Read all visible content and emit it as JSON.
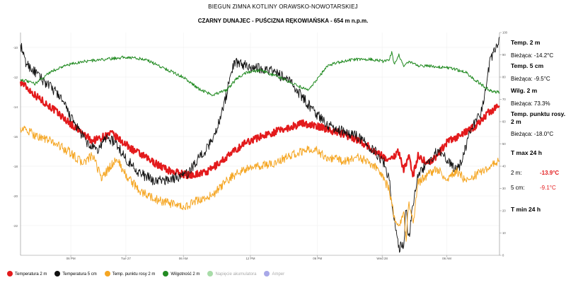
{
  "header": {
    "title": "BIEGUN ZIMNA KOTLINY ORAWSKO-NOWOTARSKIEJ",
    "subtitle": "CZARNY DUNAJEC - PUŚCIZNA RĘKOWIAŃSKA - 654 m n.p.m."
  },
  "side": {
    "t2_title": "Temp. 2 m",
    "t2_value": "Bieżąca: -14.2°C",
    "t5_title": "Temp. 5 cm",
    "t5_value": "Bieżąca: -9.5°C",
    "wilg_title": "Wilg. 2 m",
    "wilg_value": "Bieżąca: 73.3%",
    "dew_title": "Temp. punktu rosy. 2 m",
    "dew_value": "Bieżąca: -18.0°C",
    "tmax_title": "T max 24 h",
    "tmax_2m_label": "2 m:",
    "tmax_2m_value": "-13.9°C",
    "tmax_5cm_label": "5 cm:",
    "tmax_5cm_value": "-9.1°C",
    "tmin_title": "T min 24 h"
  },
  "legend": [
    {
      "label": "Temperatura 2 m",
      "color": "#e31a1c",
      "dim": false
    },
    {
      "label": "Temperatura 5 cm",
      "color": "#111111",
      "dim": false
    },
    {
      "label": "Temp. punktu rosy 2 m",
      "color": "#f5a623",
      "dim": false
    },
    {
      "label": "Wilgotność 2 m",
      "color": "#228b22",
      "dim": false
    },
    {
      "label": "Napięcie akumulatora",
      "color": "#a8dca8",
      "dim": true
    },
    {
      "label": "Amper",
      "color": "#a8a8e8",
      "dim": true
    }
  ],
  "chart_data": {
    "type": "line",
    "left_axis": {
      "min": -24,
      "max": -9,
      "ticks": [
        -10,
        -12,
        -14,
        -16,
        -18,
        -20,
        -22
      ]
    },
    "right_axis": {
      "min": 0,
      "max": 100,
      "ticks": [
        0,
        10,
        20,
        30,
        40,
        50,
        60,
        70,
        80,
        90,
        100
      ]
    },
    "x_axis": {
      "min": 0,
      "max": 100,
      "ticks": [
        {
          "x": 10.5,
          "label": "06 PM"
        },
        {
          "x": 22,
          "label": "Tue 27"
        },
        {
          "x": 34,
          "label": "06 AM"
        },
        {
          "x": 48,
          "label": "12 PM"
        },
        {
          "x": 62,
          "label": "06 PM"
        },
        {
          "x": 75.5,
          "label": "Wed 28"
        },
        {
          "x": 89,
          "label": "06 AM"
        }
      ]
    },
    "series": [
      {
        "name": "Temperatura 2 m",
        "color": "#e31a1c",
        "axis": "left",
        "width": 2.2,
        "noise": 0.25,
        "points": [
          [
            0,
            -12.3
          ],
          [
            3,
            -13.2
          ],
          [
            7,
            -14.2
          ],
          [
            11,
            -15.3
          ],
          [
            15,
            -16.3
          ],
          [
            19,
            -15.8
          ],
          [
            23,
            -16.8
          ],
          [
            27,
            -17.6
          ],
          [
            31,
            -18.3
          ],
          [
            35,
            -18.6
          ],
          [
            39,
            -18.4
          ],
          [
            43,
            -17.4
          ],
          [
            47,
            -16.4
          ],
          [
            51,
            -15.9
          ],
          [
            55,
            -15.5
          ],
          [
            59,
            -15.1
          ],
          [
            63,
            -15.4
          ],
          [
            67,
            -15.8
          ],
          [
            71,
            -16.3
          ],
          [
            74,
            -17.0
          ],
          [
            77,
            -17.6
          ],
          [
            79,
            -17.0
          ],
          [
            80,
            -18.3
          ],
          [
            81,
            -17.3
          ],
          [
            82,
            -18.6
          ],
          [
            83,
            -17.3
          ],
          [
            85,
            -17.8
          ],
          [
            87,
            -17.3
          ],
          [
            89,
            -16.4
          ],
          [
            92,
            -15.9
          ],
          [
            95,
            -15.3
          ],
          [
            98,
            -14.3
          ],
          [
            100,
            -14.0
          ]
        ]
      },
      {
        "name": "Temperatura 5 cm",
        "color": "#111111",
        "axis": "left",
        "width": 0.9,
        "noise": 0.35,
        "points": [
          [
            0,
            -9.8
          ],
          [
            1,
            -11.0
          ],
          [
            4,
            -12.0
          ],
          [
            8,
            -13.2
          ],
          [
            11,
            -15.0
          ],
          [
            14,
            -16.5
          ],
          [
            16,
            -17.0
          ],
          [
            18,
            -16.0
          ],
          [
            20,
            -16.5
          ],
          [
            22,
            -17.5
          ],
          [
            25,
            -18.5
          ],
          [
            28,
            -19.0
          ],
          [
            31,
            -18.9
          ],
          [
            35,
            -18.5
          ],
          [
            37,
            -17.5
          ],
          [
            39,
            -16.8
          ],
          [
            41,
            -15.5
          ],
          [
            43,
            -13.2
          ],
          [
            44,
            -11.5
          ],
          [
            45,
            -11.0
          ],
          [
            48,
            -11.3
          ],
          [
            52,
            -11.5
          ],
          [
            56,
            -12.2
          ],
          [
            58,
            -13.0
          ],
          [
            61,
            -14.2
          ],
          [
            64,
            -15.2
          ],
          [
            67,
            -15.6
          ],
          [
            70,
            -15.9
          ],
          [
            72,
            -16.4
          ],
          [
            74,
            -17.0
          ],
          [
            76,
            -17.8
          ],
          [
            77,
            -19.0
          ],
          [
            78,
            -21.5
          ],
          [
            79,
            -23.5
          ],
          [
            80,
            -23.3
          ],
          [
            80.5,
            -20.8
          ],
          [
            81,
            -23.0
          ],
          [
            82,
            -20.5
          ],
          [
            83,
            -18.5
          ],
          [
            85,
            -17.8
          ],
          [
            87,
            -17.0
          ],
          [
            89,
            -17.5
          ],
          [
            91,
            -18.3
          ],
          [
            92,
            -17.8
          ],
          [
            94,
            -15.5
          ],
          [
            96,
            -14.5
          ],
          [
            97,
            -13.0
          ],
          [
            98,
            -11.0
          ],
          [
            99,
            -10.2
          ],
          [
            100,
            -9.3
          ]
        ]
      },
      {
        "name": "Temp. punktu rosy 2 m",
        "color": "#f5a623",
        "axis": "left",
        "width": 1.0,
        "noise": 0.3,
        "points": [
          [
            0,
            -15.4
          ],
          [
            3,
            -15.9
          ],
          [
            7,
            -16.4
          ],
          [
            10,
            -17.0
          ],
          [
            13,
            -17.8
          ],
          [
            15,
            -17.3
          ],
          [
            17,
            -18.8
          ],
          [
            20,
            -17.5
          ],
          [
            22,
            -18.6
          ],
          [
            25,
            -19.7
          ],
          [
            28,
            -20.2
          ],
          [
            31,
            -20.5
          ],
          [
            34,
            -20.8
          ],
          [
            37,
            -20.3
          ],
          [
            40,
            -20.0
          ],
          [
            43,
            -19.0
          ],
          [
            46,
            -18.3
          ],
          [
            50,
            -18.0
          ],
          [
            53,
            -17.8
          ],
          [
            57,
            -17.2
          ],
          [
            61,
            -16.8
          ],
          [
            64,
            -17.4
          ],
          [
            68,
            -17.7
          ],
          [
            70,
            -17.3
          ],
          [
            73,
            -17.8
          ],
          [
            75,
            -18.3
          ],
          [
            77,
            -19.6
          ],
          [
            78,
            -21.5
          ],
          [
            79,
            -22.0
          ],
          [
            80,
            -21.0
          ],
          [
            80.5,
            -23.0
          ],
          [
            81,
            -20.4
          ],
          [
            82,
            -21.8
          ],
          [
            83,
            -19.1
          ],
          [
            85,
            -18.6
          ],
          [
            87,
            -18.2
          ],
          [
            89,
            -18.9
          ],
          [
            91,
            -18.3
          ],
          [
            93,
            -19.0
          ],
          [
            95,
            -18.6
          ],
          [
            97,
            -18.2
          ],
          [
            100,
            -17.6
          ]
        ]
      },
      {
        "name": "Wilgotność 2 m",
        "color": "#228b22",
        "axis": "right",
        "width": 1.0,
        "noise": 0.7,
        "points": [
          [
            0,
            79
          ],
          [
            3,
            77
          ],
          [
            6,
            82
          ],
          [
            9,
            85
          ],
          [
            13,
            87
          ],
          [
            18,
            88
          ],
          [
            22,
            89
          ],
          [
            26,
            88
          ],
          [
            30,
            84
          ],
          [
            34,
            80
          ],
          [
            37,
            75
          ],
          [
            40,
            72
          ],
          [
            43,
            74
          ],
          [
            45,
            79
          ],
          [
            47,
            82
          ],
          [
            50,
            83
          ],
          [
            54,
            80
          ],
          [
            58,
            76
          ],
          [
            60,
            74
          ],
          [
            62,
            79
          ],
          [
            64,
            85
          ],
          [
            67,
            87
          ],
          [
            70,
            88
          ],
          [
            73,
            88
          ],
          [
            76,
            87
          ],
          [
            77,
            88
          ],
          [
            77.5,
            91
          ],
          [
            78,
            86
          ],
          [
            79,
            90
          ],
          [
            80,
            85
          ],
          [
            81,
            87
          ],
          [
            83,
            85
          ],
          [
            86,
            85
          ],
          [
            90,
            84
          ],
          [
            93,
            82
          ],
          [
            96,
            77
          ],
          [
            98,
            74
          ],
          [
            100,
            73
          ]
        ]
      }
    ]
  }
}
